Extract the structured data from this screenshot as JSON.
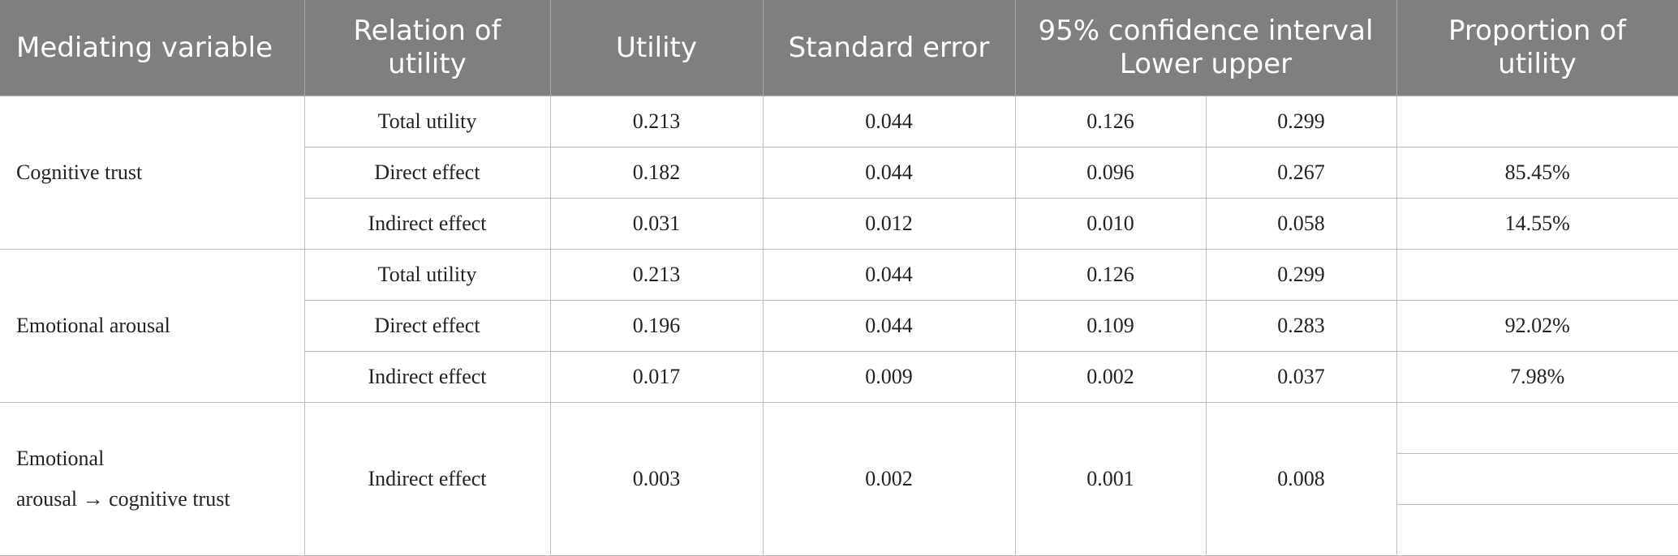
{
  "table": {
    "header": [
      "Mediating variable",
      "Relation of utility",
      "Utility",
      "Standard error",
      [
        "95% confidence interval",
        "Lower upper"
      ],
      "Proportion of utility"
    ],
    "groups": [
      {
        "label": [
          "Cognitive trust"
        ],
        "rows": [
          [
            "Total utility",
            "0.213",
            "0.044",
            "0.126",
            "0.299",
            null
          ],
          [
            "Direct effect",
            "0.182",
            "0.044",
            "0.096",
            "0.267",
            "85.45%"
          ],
          [
            "Indirect effect",
            "0.031",
            "0.012",
            "0.010",
            "0.058",
            "14.55%"
          ]
        ]
      },
      {
        "label": [
          "Emotional arousal"
        ],
        "rows": [
          [
            "Total utility",
            "0.213",
            "0.044",
            "0.126",
            "0.299",
            null
          ],
          [
            "Direct effect",
            "0.196",
            "0.044",
            "0.109",
            "0.283",
            "92.02%"
          ],
          [
            "Indirect effect",
            "0.017",
            "0.009",
            "0.002",
            "0.037",
            "7.98%"
          ]
        ]
      },
      {
        "label": [
          "Emotional",
          "arousal → cognitive trust"
        ],
        "rows": [
          [
            "Indirect effect",
            "0.003",
            "0.002",
            "0.001",
            "0.008",
            null
          ]
        ]
      }
    ]
  }
}
